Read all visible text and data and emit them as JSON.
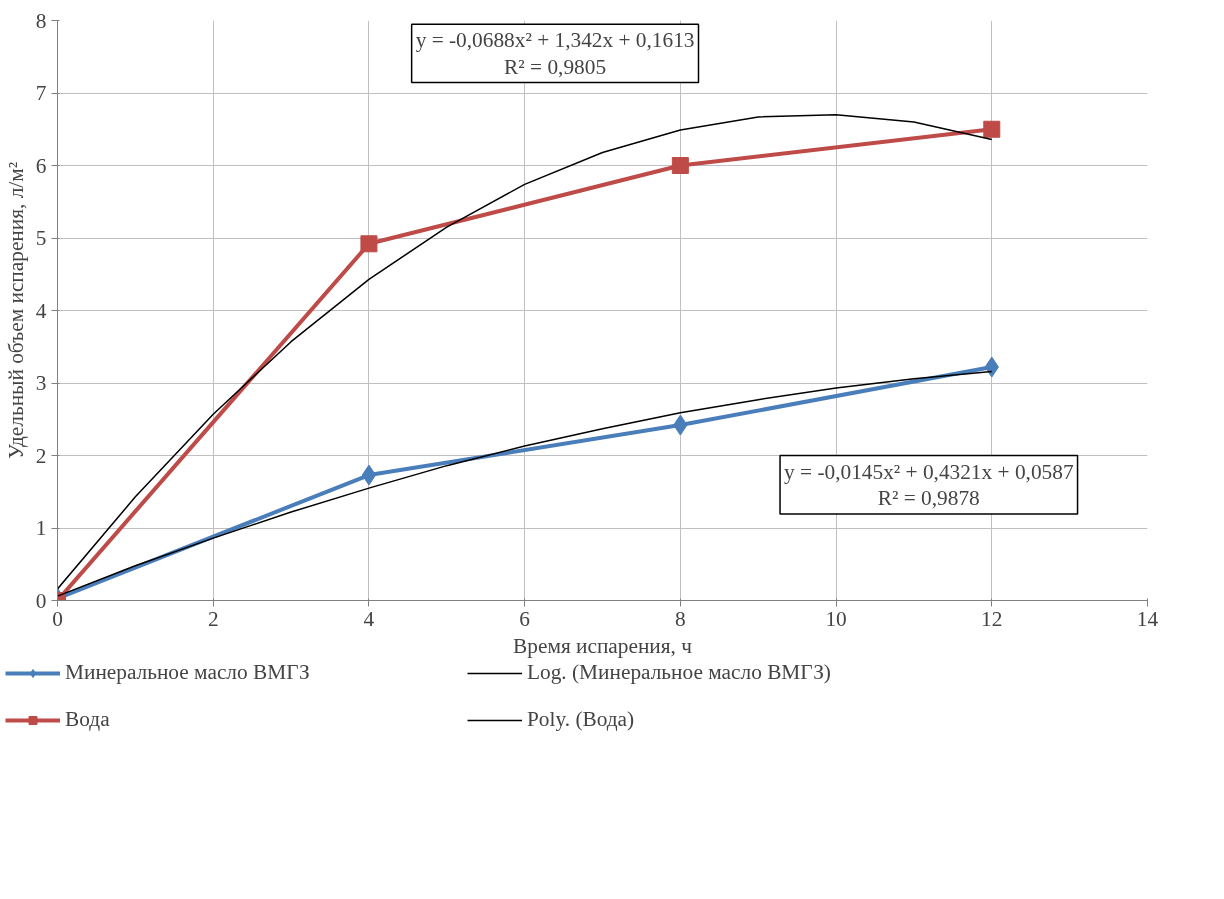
{
  "chart_data": {
    "type": "line",
    "xlabel": "Время испарения, ч",
    "ylabel": "Удельный объем испарения, л/м²",
    "xlim": [
      0,
      14
    ],
    "ylim": [
      0,
      8
    ],
    "xticks": [
      0,
      2,
      4,
      6,
      8,
      10,
      12,
      14
    ],
    "yticks": [
      0,
      1,
      2,
      3,
      4,
      5,
      6,
      7,
      8
    ],
    "grid": true,
    "legend": "bottom",
    "series": [
      {
        "name": "Минеральное масло ВМГЗ",
        "color": "#4a7ebb",
        "marker": "diamond",
        "x": [
          0,
          4,
          8,
          12
        ],
        "values": [
          0.03,
          1.73,
          2.42,
          3.22
        ]
      },
      {
        "name": "Вода",
        "color": "#be4b48",
        "marker": "square",
        "x": [
          0,
          4,
          8,
          12
        ],
        "values": [
          0,
          4.92,
          6.0,
          6.5
        ]
      },
      {
        "name": "Log. (Минеральное масло ВМГЗ)",
        "color": "#000000",
        "marker": "none",
        "x": [
          0,
          1,
          2,
          3,
          4,
          5,
          6,
          7,
          8,
          9,
          10,
          11,
          12
        ],
        "values": [
          0.06,
          0.48,
          0.86,
          1.22,
          1.55,
          1.86,
          2.13,
          2.37,
          2.59,
          2.77,
          2.93,
          3.06,
          3.16
        ]
      },
      {
        "name": "Poly. (Вода)",
        "color": "#000000",
        "marker": "none",
        "x": [
          0,
          1,
          2,
          3,
          4,
          5,
          6,
          7,
          8,
          9,
          10,
          11,
          12
        ],
        "values": [
          0.16,
          1.43,
          2.57,
          3.57,
          4.43,
          5.15,
          5.74,
          6.18,
          6.49,
          6.67,
          6.7,
          6.6,
          6.36
        ]
      }
    ],
    "annotations": [
      "y = -0,0688x² + 1,342x + 0,1613\nR² = 0,9805",
      "y = -0,0145x² + 0,4321x + 0,0587\nR² = 0,9878"
    ]
  }
}
